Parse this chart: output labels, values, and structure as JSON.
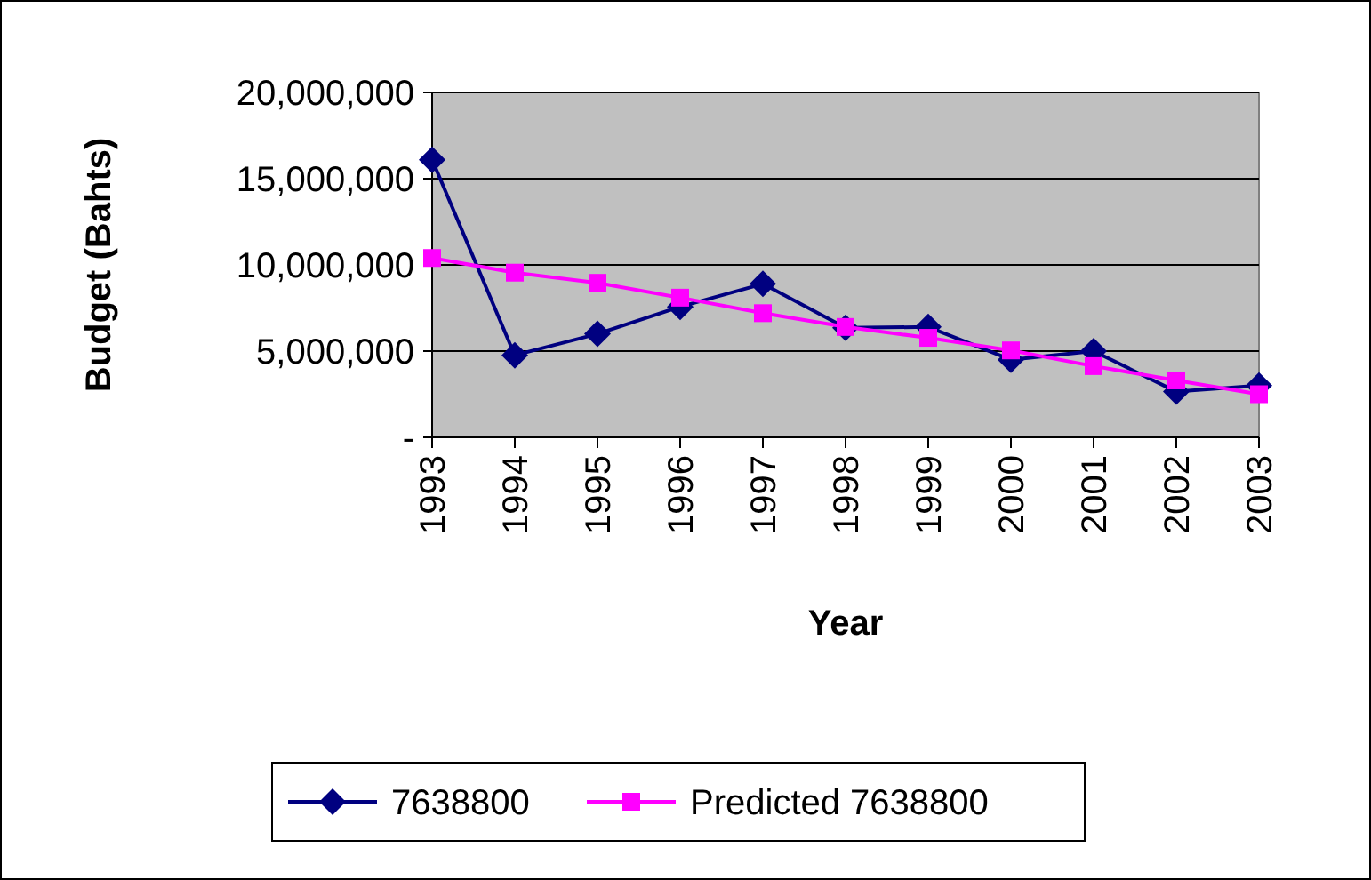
{
  "chart_data": {
    "type": "line",
    "xlabel": "Year",
    "ylabel": "Budget (Bahts)",
    "categories": [
      "1993",
      "1994",
      "1995",
      "1996",
      "1997",
      "1998",
      "1999",
      "2000",
      "2001",
      "2002",
      "2003"
    ],
    "series": [
      {
        "name": "7638800",
        "color": "#000080",
        "marker": "diamond",
        "values": [
          16100000,
          4760000,
          6000000,
          7570000,
          8900000,
          6350000,
          6400000,
          4500000,
          5000000,
          2650000,
          3000000
        ]
      },
      {
        "name": "Predicted 7638800",
        "color": "#ff00ff",
        "marker": "square",
        "values": [
          10400000,
          9550000,
          8960000,
          8100000,
          7200000,
          6400000,
          5770000,
          5040000,
          4130000,
          3300000,
          2500000
        ]
      }
    ],
    "ylim": [
      0,
      20000000
    ],
    "yticks": [
      {
        "value": 0,
        "label": "-"
      },
      {
        "value": 5000000,
        "label": "5,000,000"
      },
      {
        "value": 10000000,
        "label": "10,000,000"
      },
      {
        "value": 15000000,
        "label": "15,000,000"
      },
      {
        "value": 20000000,
        "label": "20,000,000"
      }
    ],
    "grid": "y",
    "legend": "bottom",
    "line_style": "solid"
  }
}
